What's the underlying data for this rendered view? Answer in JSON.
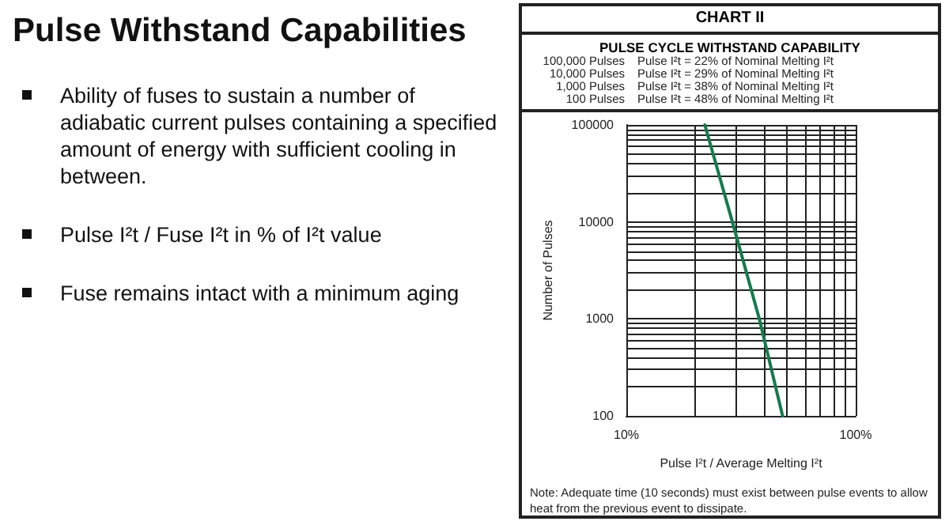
{
  "chart_data": {
    "type": "line",
    "title": "Pulse Withstand Capabilities",
    "subtitle": "CHART II",
    "xlabel": "Pulse I²t / Average Melting I²t",
    "ylabel": "Number of Pulses",
    "x": [
      22,
      29,
      38,
      48
    ],
    "series": [
      {
        "color": "#157a4e",
        "values": [
          100000,
          10000,
          1000,
          100
        ]
      }
    ],
    "log": "xy",
    "xlim": [
      10,
      100
    ],
    "ylim": [
      100,
      100000
    ],
    "xticks": [
      {
        "value": 10,
        "label": "10%"
      },
      {
        "value": 20,
        "label": null
      },
      {
        "value": 30,
        "label": null
      },
      {
        "value": 40,
        "label": null
      },
      {
        "value": 50,
        "label": null
      },
      {
        "value": 60,
        "label": null
      },
      {
        "value": 70,
        "label": null
      },
      {
        "value": 80,
        "label": null
      },
      {
        "value": 90,
        "label": null
      },
      {
        "value": 100,
        "label": "100%"
      }
    ],
    "yticks": [
      100,
      {
        "value": 200,
        "label": null
      },
      {
        "value": 300,
        "label": null
      },
      {
        "value": 400,
        "label": null
      },
      {
        "value": 500,
        "label": null
      },
      {
        "value": 600,
        "label": null
      },
      {
        "value": 700,
        "label": null
      },
      {
        "value": 800,
        "label": null
      },
      {
        "value": 900,
        "label": null
      },
      1000,
      {
        "value": 2000,
        "label": null
      },
      {
        "value": 3000,
        "label": null
      },
      {
        "value": 4000,
        "label": null
      },
      {
        "value": 5000,
        "label": null
      },
      {
        "value": 6000,
        "label": null
      },
      {
        "value": 7000,
        "label": null
      },
      {
        "value": 8000,
        "label": null
      },
      {
        "value": 9000,
        "label": null
      },
      10000,
      {
        "value": 20000,
        "label": null
      },
      {
        "value": 30000,
        "label": null
      },
      {
        "value": 40000,
        "label": null
      },
      {
        "value": 50000,
        "label": null
      },
      {
        "value": 60000,
        "label": null
      },
      {
        "value": 70000,
        "label": null
      },
      {
        "value": 80000,
        "label": null
      },
      {
        "value": 90000,
        "label": null
      },
      100000
    ],
    "grid": true,
    "marker": "none",
    "line_style": "solid",
    "annotations": [
      "Ability of fuses to sustain a number of adiabatic current pulses containing a specified amount of energy with sufficient cooling in between.",
      "Pulse I²t / Fuse I²t in % of I²t value",
      "Fuse remains intact with a minimum aging",
      "PULSE CYCLE WITHSTAND CAPABILITY",
      "100,000 Pulses",
      "Pulse I²t = 22% of Nominal Melting I²t",
      "10,000 Pulses",
      "Pulse I²t = 29% of Nominal Melting I²t",
      "1,000 Pulses",
      "Pulse I²t = 38% of Nominal Melting I²t",
      "100 Pulses",
      "Pulse I²t = 48% of Nominal Melting I²t",
      "Note: Adequate time (10 seconds) must exist between pulse events to allow heat from the previous event to dissipate."
    ]
  }
}
